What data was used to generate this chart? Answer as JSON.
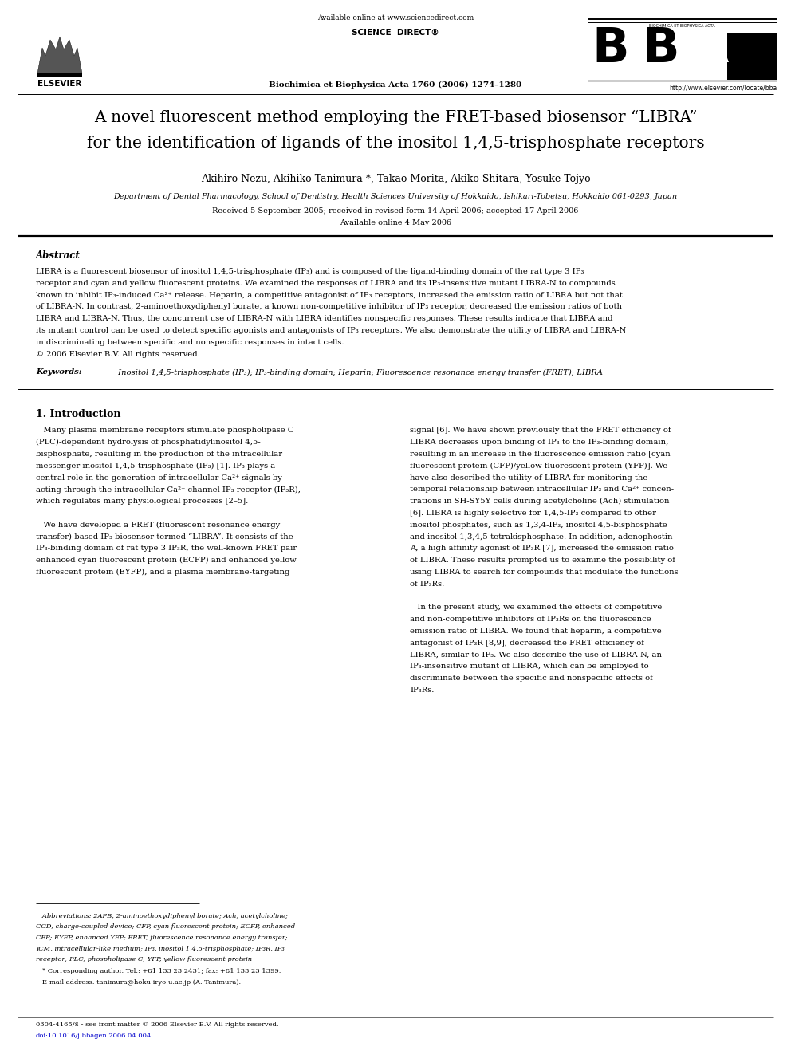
{
  "background_color": "#ffffff",
  "page_width": 9.92,
  "page_height": 13.23,
  "header_available": "Available online at www.sciencedirect.com",
  "header_journal": "Biochimica et Biophysica Acta 1760 (2006) 1274–1280",
  "header_url": "http://www.elsevier.com/locate/bba",
  "header_scidir": "SCIENCE  DIRECT®",
  "bba_text": "BIOCHIMICA ET BIOPHYSICA ACTA",
  "title_line1": "A novel fluorescent method employing the FRET-based biosensor “LIBRA”",
  "title_line2": "for the identification of ligands of the inositol 1,4,5-trisphosphate receptors",
  "authors": "Akihiro Nezu, Akihiko Tanimura *, Takao Morita, Akiko Shitara, Yosuke Tojyo",
  "affiliation": "Department of Dental Pharmacology, School of Dentistry, Health Sciences University of Hokkaido, Ishikari-Tobetsu, Hokkaido 061-0293, Japan",
  "received": "Received 5 September 2005; received in revised form 14 April 2006; accepted 17 April 2006",
  "available_online": "Available online 4 May 2006",
  "abstract_label": "Abstract",
  "abstract_lines": [
    "LIBRA is a fluorescent biosensor of inositol 1,4,5-trisphosphate (IP₃) and is composed of the ligand-binding domain of the rat type 3 IP₃",
    "receptor and cyan and yellow fluorescent proteins. We examined the responses of LIBRA and its IP₃-insensitive mutant LIBRA-N to compounds",
    "known to inhibit IP₃-induced Ca²⁺ release. Heparin, a competitive antagonist of IP₃ receptors, increased the emission ratio of LIBRA but not that",
    "of LIBRA-N. In contrast, 2-aminoethoxydiphenyl borate, a known non-competitive inhibitor of IP₃ receptor, decreased the emission ratios of both",
    "LIBRA and LIBRA-N. Thus, the concurrent use of LIBRA-N with LIBRA identifies nonspecific responses. These results indicate that LIBRA and",
    "its mutant control can be used to detect specific agonists and antagonists of IP₃ receptors. We also demonstrate the utility of LIBRA and LIBRA-N",
    "in discriminating between specific and nonspecific responses in intact cells.",
    "© 2006 Elsevier B.V. All rights reserved."
  ],
  "keywords_label": "Keywords:",
  "keywords_text": " Inositol 1,4,5-trisphosphate (IP₃); IP₃-binding domain; Heparin; Fluorescence resonance energy transfer (FRET); LIBRA",
  "sec1_title": "1. Introduction",
  "col1_lines": [
    "   Many plasma membrane receptors stimulate phospholipase C",
    "(PLC)-dependent hydrolysis of phosphatidylinositol 4,5-",
    "bisphosphate, resulting in the production of the intracellular",
    "messenger inositol 1,4,5-trisphosphate (IP₃) [1]. IP₃ plays a",
    "central role in the generation of intracellular Ca²⁺ signals by",
    "acting through the intracellular Ca²⁺ channel IP₃ receptor (IP₃R),",
    "which regulates many physiological processes [2–5].",
    "",
    "   We have developed a FRET (fluorescent resonance energy",
    "transfer)-based IP₃ biosensor termed “LIBRA”. It consists of the",
    "IP₃-binding domain of rat type 3 IP₃R, the well-known FRET pair",
    "enhanced cyan fluorescent protein (ECFP) and enhanced yellow",
    "fluorescent protein (EYFP), and a plasma membrane-targeting"
  ],
  "col2_lines": [
    "signal [6]. We have shown previously that the FRET efficiency of",
    "LIBRA decreases upon binding of IP₃ to the IP₃-binding domain,",
    "resulting in an increase in the fluorescence emission ratio [cyan",
    "fluorescent protein (CFP)/yellow fluorescent protein (YFP)]. We",
    "have also described the utility of LIBRA for monitoring the",
    "temporal relationship between intracellular IP₃ and Ca²⁺ concen-",
    "trations in SH-SY5Y cells during acetylcholine (Ach) stimulation",
    "[6]. LIBRA is highly selective for 1,4,5-IP₃ compared to other",
    "inositol phosphates, such as 1,3,4-IP₃, inositol 4,5-bisphosphate",
    "and inositol 1,3,4,5-tetrakisphosphate. In addition, adenophostin",
    "A, a high affinity agonist of IP₃R [7], increased the emission ratio",
    "of LIBRA. These results prompted us to examine the possibility of",
    "using LIBRA to search for compounds that modulate the functions",
    "of IP₃Rs.",
    "",
    "   In the present study, we examined the effects of competitive",
    "and non-competitive inhibitors of IP₃Rs on the fluorescence",
    "emission ratio of LIBRA. We found that heparin, a competitive",
    "antagonist of IP₃R [8,9], decreased the FRET efficiency of",
    "LIBRA, similar to IP₃. We also describe the use of LIBRA-N, an",
    "IP₃-insensitive mutant of LIBRA, which can be employed to",
    "discriminate between the specific and nonspecific effects of",
    "IP₃Rs."
  ],
  "fn_abbrev_lines": [
    "   Abbreviations: 2APB, 2-aminoethoxydiphenyl borate; Ach, acetylcholine;",
    "CCD, charge-coupled device; CFP, cyan fluorescent protein; ECFP, enhanced",
    "CFP; EYFP, enhanced YFP; FRET, fluorescence resonance energy transfer;",
    "ICM, intracellular-like medium; IP₃, inositol 1,4,5-trisphosphate; IP₃R, IP₃",
    "receptor; PLC, phospholipase C; YFP, yellow fluorescent protein"
  ],
  "fn_corr_lines": [
    "   * Corresponding author. Tel.: +81 133 23 2431; fax: +81 133 23 1399.",
    "   E-mail address: tanimura@hoku-iryo-u.ac.jp (A. Tanimura)."
  ],
  "footer_line1": "0304-4165/$ - see front matter © 2006 Elsevier B.V. All rights reserved.",
  "footer_line2": "doi:10.1016/j.bbagen.2006.04.004",
  "doi_color": "#0000cc"
}
